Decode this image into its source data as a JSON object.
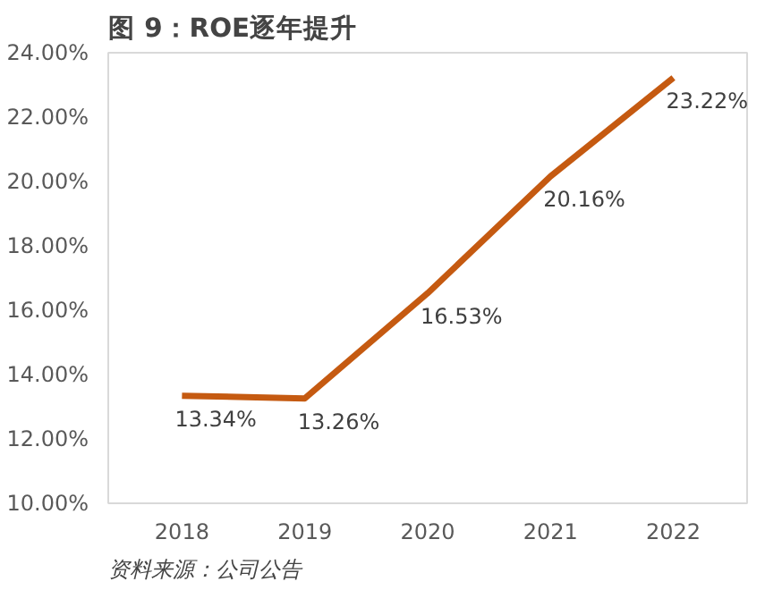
{
  "chart_data": {
    "type": "line",
    "title": "图 9：ROE逐年提升",
    "categories": [
      "2018",
      "2019",
      "2020",
      "2021",
      "2022"
    ],
    "series": [
      {
        "color": "#c55a11",
        "values": [
          13.34,
          13.26,
          16.53,
          20.16,
          23.22
        ]
      }
    ],
    "value_labels": [
      "13.34%",
      "13.26%",
      "16.53%",
      "20.16%",
      "23.22%"
    ],
    "ylim": [
      10,
      24
    ],
    "yticks": [
      {
        "value": 10,
        "label": "10.00%"
      },
      {
        "value": 12,
        "label": "12.00%"
      },
      {
        "value": 14,
        "label": "14.00%"
      },
      {
        "value": 16,
        "label": "16.00%"
      },
      {
        "value": 18,
        "label": "18.00%"
      },
      {
        "value": 20,
        "label": "20.00%"
      },
      {
        "value": 22,
        "label": "22.00%"
      },
      {
        "value": 24,
        "label": "24.00%"
      }
    ],
    "grid": false,
    "marker": "none",
    "line_style": "solid",
    "annotations": [
      "资料来源：公司公告"
    ]
  }
}
